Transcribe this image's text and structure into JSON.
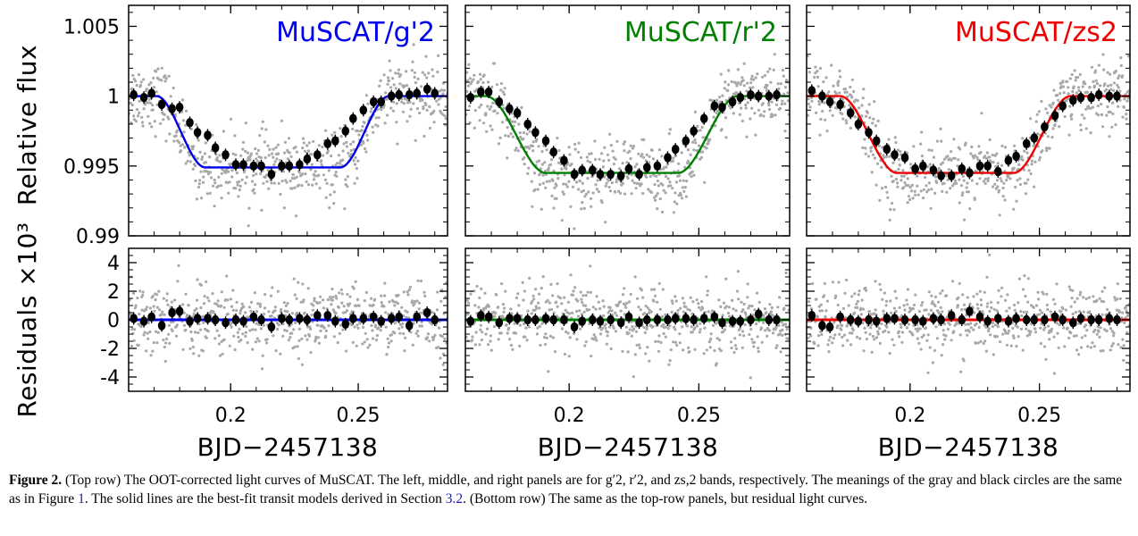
{
  "chart_data": [
    {
      "type": "scatter",
      "band_label": "MuSCAT/g'2",
      "color": "#0000ee",
      "xlim": [
        0.16,
        0.285
      ],
      "x_ticks": [
        "0.2",
        "0.25"
      ],
      "top": {
        "ylabel": "Relative flux",
        "ylim": [
          0.99,
          1.0065
        ],
        "y_ticks": [
          "0.99",
          "0.995",
          "1",
          "1.005"
        ],
        "model": {
          "t0": 0.2165,
          "depth": 0.0051,
          "half_total": 0.0455,
          "half_flat": 0.0265
        },
        "binned": [
          {
            "x": 0.162,
            "y": 1.0001
          },
          {
            "x": 0.166,
            "y": 0.9999
          },
          {
            "x": 0.169,
            "y": 1.0002
          },
          {
            "x": 0.173,
            "y": 0.9994
          },
          {
            "x": 0.177,
            "y": 0.9991
          },
          {
            "x": 0.18,
            "y": 0.9992
          },
          {
            "x": 0.184,
            "y": 0.9981
          },
          {
            "x": 0.187,
            "y": 0.9974
          },
          {
            "x": 0.191,
            "y": 0.9972
          },
          {
            "x": 0.194,
            "y": 0.9963
          },
          {
            "x": 0.198,
            "y": 0.9958
          },
          {
            "x": 0.202,
            "y": 0.9951
          },
          {
            "x": 0.205,
            "y": 0.9951
          },
          {
            "x": 0.209,
            "y": 0.995
          },
          {
            "x": 0.212,
            "y": 0.995
          },
          {
            "x": 0.216,
            "y": 0.9944
          },
          {
            "x": 0.22,
            "y": 0.995
          },
          {
            "x": 0.223,
            "y": 0.995
          },
          {
            "x": 0.227,
            "y": 0.9951
          },
          {
            "x": 0.23,
            "y": 0.9955
          },
          {
            "x": 0.234,
            "y": 0.9958
          },
          {
            "x": 0.238,
            "y": 0.9966
          },
          {
            "x": 0.241,
            "y": 0.9968
          },
          {
            "x": 0.245,
            "y": 0.9975
          },
          {
            "x": 0.248,
            "y": 0.9984
          },
          {
            "x": 0.252,
            "y": 0.999
          },
          {
            "x": 0.256,
            "y": 0.9996
          },
          {
            "x": 0.259,
            "y": 0.9996
          },
          {
            "x": 0.263,
            "y": 1.0
          },
          {
            "x": 0.266,
            "y": 1.0001
          },
          {
            "x": 0.27,
            "y": 1.0001
          },
          {
            "x": 0.273,
            "y": 1.0002
          },
          {
            "x": 0.277,
            "y": 1.0005
          },
          {
            "x": 0.28,
            "y": 1.0002
          }
        ]
      },
      "bottom": {
        "ylabel": "Residuals ×10³",
        "ylim": [
          -5,
          5
        ],
        "y_ticks": [
          "-4",
          "-2",
          "0",
          "2",
          "4"
        ],
        "binned": [
          {
            "x": 0.162,
            "y": 0.1
          },
          {
            "x": 0.166,
            "y": -0.1
          },
          {
            "x": 0.169,
            "y": 0.2
          },
          {
            "x": 0.173,
            "y": -0.4
          },
          {
            "x": 0.177,
            "y": 0.5
          },
          {
            "x": 0.18,
            "y": 0.6
          },
          {
            "x": 0.184,
            "y": -0.1
          },
          {
            "x": 0.187,
            "y": 0.1
          },
          {
            "x": 0.191,
            "y": 0.1
          },
          {
            "x": 0.194,
            "y": 0.0
          },
          {
            "x": 0.198,
            "y": -0.2
          },
          {
            "x": 0.202,
            "y": 0.0
          },
          {
            "x": 0.205,
            "y": -0.1
          },
          {
            "x": 0.209,
            "y": 0.2
          },
          {
            "x": 0.212,
            "y": 0.0
          },
          {
            "x": 0.216,
            "y": -0.5
          },
          {
            "x": 0.22,
            "y": 0.1
          },
          {
            "x": 0.223,
            "y": 0.0
          },
          {
            "x": 0.227,
            "y": 0.1
          },
          {
            "x": 0.23,
            "y": 0.0
          },
          {
            "x": 0.234,
            "y": 0.3
          },
          {
            "x": 0.238,
            "y": 0.3
          },
          {
            "x": 0.241,
            "y": -0.1
          },
          {
            "x": 0.245,
            "y": -0.3
          },
          {
            "x": 0.248,
            "y": 0.1
          },
          {
            "x": 0.252,
            "y": 0.1
          },
          {
            "x": 0.256,
            "y": 0.2
          },
          {
            "x": 0.259,
            "y": -0.1
          },
          {
            "x": 0.263,
            "y": 0.1
          },
          {
            "x": 0.266,
            "y": 0.2
          },
          {
            "x": 0.27,
            "y": -0.4
          },
          {
            "x": 0.273,
            "y": 0.2
          },
          {
            "x": 0.277,
            "y": 0.5
          },
          {
            "x": 0.28,
            "y": 0.0
          }
        ]
      },
      "xlabel": "BJD−2457138"
    },
    {
      "type": "scatter",
      "band_label": "MuSCAT/r'2",
      "color": "#008000",
      "xlim": [
        0.16,
        0.285
      ],
      "x_ticks": [
        "0.2",
        "0.25"
      ],
      "top": {
        "ylim": [
          0.99,
          1.0065
        ],
        "model": {
          "t0": 0.2165,
          "depth": 0.0055,
          "half_total": 0.0485,
          "half_flat": 0.0255
        },
        "binned": [
          {
            "x": 0.162,
            "y": 0.9999
          },
          {
            "x": 0.166,
            "y": 1.0003
          },
          {
            "x": 0.169,
            "y": 1.0003
          },
          {
            "x": 0.173,
            "y": 0.9996
          },
          {
            "x": 0.177,
            "y": 0.9991
          },
          {
            "x": 0.18,
            "y": 0.9988
          },
          {
            "x": 0.184,
            "y": 0.998
          },
          {
            "x": 0.187,
            "y": 0.9974
          },
          {
            "x": 0.191,
            "y": 0.9968
          },
          {
            "x": 0.194,
            "y": 0.996
          },
          {
            "x": 0.198,
            "y": 0.9954
          },
          {
            "x": 0.202,
            "y": 0.9944
          },
          {
            "x": 0.205,
            "y": 0.9947
          },
          {
            "x": 0.209,
            "y": 0.9947
          },
          {
            "x": 0.212,
            "y": 0.9944
          },
          {
            "x": 0.216,
            "y": 0.9944
          },
          {
            "x": 0.22,
            "y": 0.9943
          },
          {
            "x": 0.223,
            "y": 0.9948
          },
          {
            "x": 0.227,
            "y": 0.9944
          },
          {
            "x": 0.23,
            "y": 0.9949
          },
          {
            "x": 0.234,
            "y": 0.995
          },
          {
            "x": 0.238,
            "y": 0.9956
          },
          {
            "x": 0.241,
            "y": 0.9962
          },
          {
            "x": 0.245,
            "y": 0.9968
          },
          {
            "x": 0.248,
            "y": 0.9975
          },
          {
            "x": 0.252,
            "y": 0.9984
          },
          {
            "x": 0.256,
            "y": 0.9993
          },
          {
            "x": 0.259,
            "y": 0.9992
          },
          {
            "x": 0.263,
            "y": 0.9996
          },
          {
            "x": 0.266,
            "y": 0.9999
          },
          {
            "x": 0.27,
            "y": 1.0001
          },
          {
            "x": 0.273,
            "y": 1.0
          },
          {
            "x": 0.277,
            "y": 1.0
          },
          {
            "x": 0.28,
            "y": 1.0001
          }
        ]
      },
      "bottom": {
        "ylim": [
          -5,
          5
        ],
        "binned": [
          {
            "x": 0.162,
            "y": -0.1
          },
          {
            "x": 0.166,
            "y": 0.3
          },
          {
            "x": 0.169,
            "y": 0.2
          },
          {
            "x": 0.173,
            "y": -0.2
          },
          {
            "x": 0.177,
            "y": 0.1
          },
          {
            "x": 0.18,
            "y": 0.1
          },
          {
            "x": 0.184,
            "y": 0.0
          },
          {
            "x": 0.187,
            "y": 0.0
          },
          {
            "x": 0.191,
            "y": 0.1
          },
          {
            "x": 0.194,
            "y": 0.0
          },
          {
            "x": 0.198,
            "y": 0.0
          },
          {
            "x": 0.202,
            "y": -0.5
          },
          {
            "x": 0.205,
            "y": -0.1
          },
          {
            "x": 0.209,
            "y": 0.0
          },
          {
            "x": 0.212,
            "y": -0.1
          },
          {
            "x": 0.216,
            "y": 0.0
          },
          {
            "x": 0.22,
            "y": -0.2
          },
          {
            "x": 0.223,
            "y": 0.2
          },
          {
            "x": 0.227,
            "y": -0.2
          },
          {
            "x": 0.23,
            "y": 0.0
          },
          {
            "x": 0.234,
            "y": 0.0
          },
          {
            "x": 0.238,
            "y": 0.0
          },
          {
            "x": 0.241,
            "y": 0.1
          },
          {
            "x": 0.245,
            "y": 0.1
          },
          {
            "x": 0.248,
            "y": 0.0
          },
          {
            "x": 0.252,
            "y": 0.1
          },
          {
            "x": 0.256,
            "y": 0.2
          },
          {
            "x": 0.259,
            "y": -0.2
          },
          {
            "x": 0.263,
            "y": -0.1
          },
          {
            "x": 0.266,
            "y": -0.1
          },
          {
            "x": 0.27,
            "y": 0.0
          },
          {
            "x": 0.273,
            "y": 0.4
          },
          {
            "x": 0.277,
            "y": 0.0
          },
          {
            "x": 0.28,
            "y": 0.0
          }
        ]
      },
      "xlabel": "BJD−2457138"
    },
    {
      "type": "scatter",
      "band_label": "MuSCAT/zs2",
      "color": "#ee0000",
      "xlim": [
        0.16,
        0.285
      ],
      "x_ticks": [
        "0.2",
        "0.25"
      ],
      "top": {
        "ylim": [
          0.99,
          1.0065
        ],
        "model": {
          "t0": 0.2175,
          "depth": 0.0055,
          "half_total": 0.0445,
          "half_flat": 0.0225
        },
        "binned": [
          {
            "x": 0.162,
            "y": 1.0004
          },
          {
            "x": 0.166,
            "y": 1.0
          },
          {
            "x": 0.169,
            "y": 0.9996
          },
          {
            "x": 0.173,
            "y": 0.9994
          },
          {
            "x": 0.177,
            "y": 0.9988
          },
          {
            "x": 0.18,
            "y": 0.998
          },
          {
            "x": 0.184,
            "y": 0.9974
          },
          {
            "x": 0.187,
            "y": 0.9968
          },
          {
            "x": 0.191,
            "y": 0.9962
          },
          {
            "x": 0.194,
            "y": 0.9958
          },
          {
            "x": 0.198,
            "y": 0.9956
          },
          {
            "x": 0.202,
            "y": 0.9948
          },
          {
            "x": 0.205,
            "y": 0.995
          },
          {
            "x": 0.209,
            "y": 0.9947
          },
          {
            "x": 0.212,
            "y": 0.9943
          },
          {
            "x": 0.216,
            "y": 0.9943
          },
          {
            "x": 0.22,
            "y": 0.9948
          },
          {
            "x": 0.223,
            "y": 0.9945
          },
          {
            "x": 0.227,
            "y": 0.995
          },
          {
            "x": 0.23,
            "y": 0.995
          },
          {
            "x": 0.234,
            "y": 0.9946
          },
          {
            "x": 0.238,
            "y": 0.9954
          },
          {
            "x": 0.241,
            "y": 0.9957
          },
          {
            "x": 0.245,
            "y": 0.9966
          },
          {
            "x": 0.248,
            "y": 0.997
          },
          {
            "x": 0.252,
            "y": 0.9978
          },
          {
            "x": 0.256,
            "y": 0.9986
          },
          {
            "x": 0.259,
            "y": 0.9993
          },
          {
            "x": 0.263,
            "y": 0.9997
          },
          {
            "x": 0.266,
            "y": 0.9999
          },
          {
            "x": 0.27,
            "y": 0.9999
          },
          {
            "x": 0.273,
            "y": 1.0001
          },
          {
            "x": 0.277,
            "y": 1.0
          },
          {
            "x": 0.28,
            "y": 1.0
          }
        ]
      },
      "bottom": {
        "ylim": [
          -5,
          5
        ],
        "binned": [
          {
            "x": 0.162,
            "y": 0.3
          },
          {
            "x": 0.166,
            "y": -0.4
          },
          {
            "x": 0.169,
            "y": -0.5
          },
          {
            "x": 0.173,
            "y": 0.2
          },
          {
            "x": 0.177,
            "y": 0.0
          },
          {
            "x": 0.18,
            "y": -0.1
          },
          {
            "x": 0.184,
            "y": 0.0
          },
          {
            "x": 0.187,
            "y": -0.1
          },
          {
            "x": 0.191,
            "y": 0.1
          },
          {
            "x": 0.194,
            "y": 0.1
          },
          {
            "x": 0.198,
            "y": 0.0
          },
          {
            "x": 0.202,
            "y": 0.0
          },
          {
            "x": 0.205,
            "y": -0.1
          },
          {
            "x": 0.209,
            "y": 0.1
          },
          {
            "x": 0.212,
            "y": 0.0
          },
          {
            "x": 0.216,
            "y": 0.3
          },
          {
            "x": 0.22,
            "y": 0.0
          },
          {
            "x": 0.223,
            "y": 0.6
          },
          {
            "x": 0.227,
            "y": 0.2
          },
          {
            "x": 0.23,
            "y": -0.1
          },
          {
            "x": 0.234,
            "y": 0.1
          },
          {
            "x": 0.238,
            "y": -0.1
          },
          {
            "x": 0.241,
            "y": 0.1
          },
          {
            "x": 0.245,
            "y": 0.0
          },
          {
            "x": 0.248,
            "y": 0.0
          },
          {
            "x": 0.252,
            "y": 0.0
          },
          {
            "x": 0.256,
            "y": 0.2
          },
          {
            "x": 0.259,
            "y": 0.0
          },
          {
            "x": 0.263,
            "y": -0.2
          },
          {
            "x": 0.266,
            "y": 0.1
          },
          {
            "x": 0.27,
            "y": 0.0
          },
          {
            "x": 0.273,
            "y": 0.0
          },
          {
            "x": 0.277,
            "y": 0.1
          },
          {
            "x": 0.28,
            "y": 0.0
          }
        ]
      },
      "xlabel": "BJD−2457138"
    }
  ],
  "caption": {
    "figure_label": "Figure 2.",
    "part1": "(Top row) The OOT-corrected light curves of MuSCAT. The left, middle, and right panels are for g′2, r′2, and zs,2 bands, respectively. The meanings of the gray and black circles are the same as in Figure",
    "ref_figure": "1",
    "part2": ". The solid lines are the best-fit transit models derived in Section",
    "ref_section": "3.2",
    "part3": ". (Bottom row) The same as the top-row panels, but residual light curves."
  }
}
